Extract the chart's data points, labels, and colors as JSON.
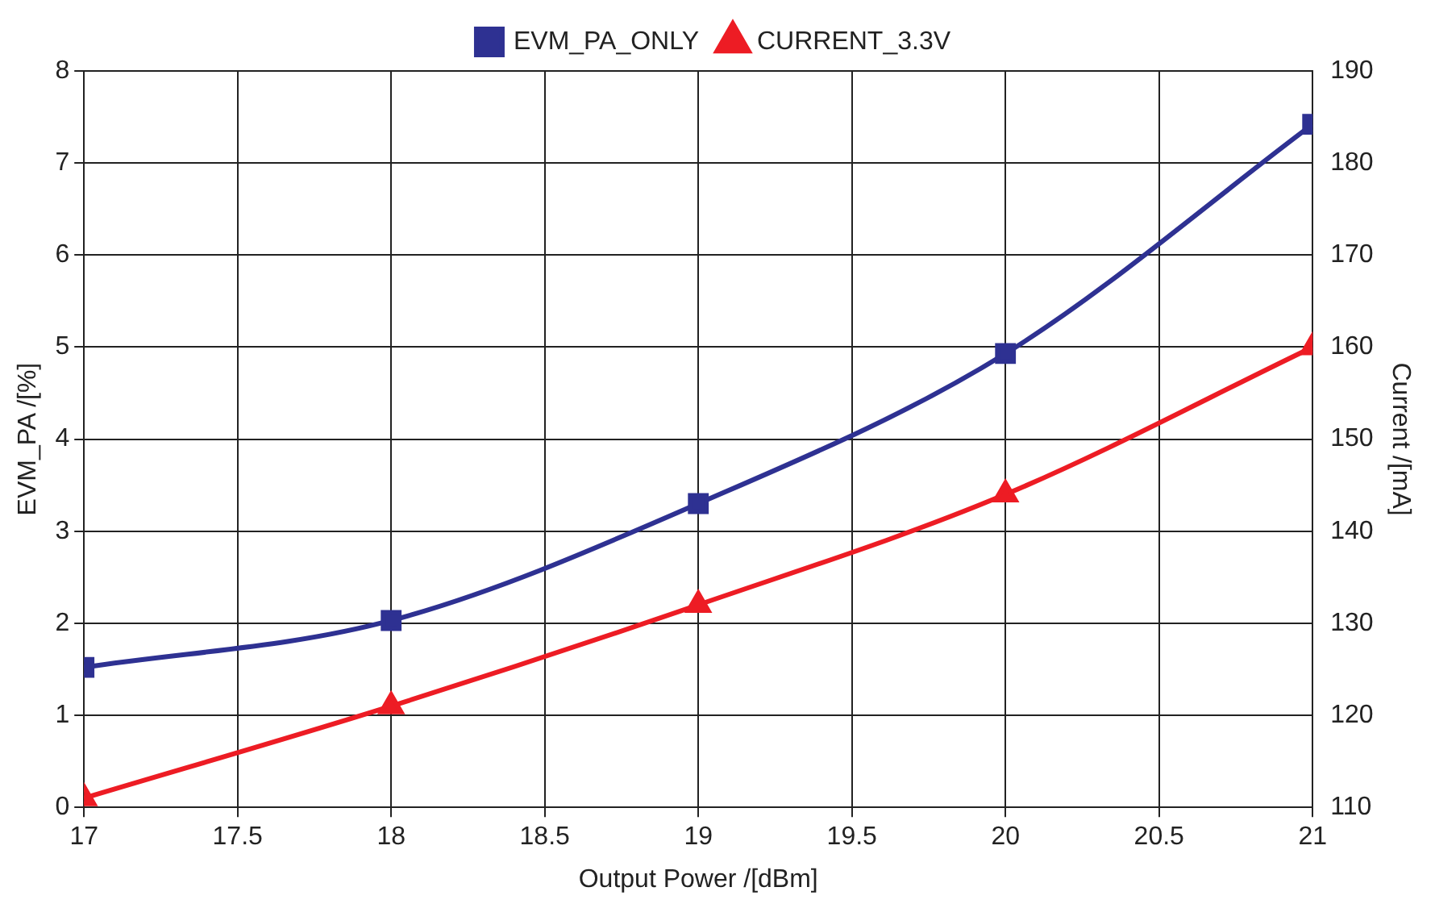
{
  "chart_data": {
    "type": "line",
    "xlabel": "Output Power /[dBm]",
    "ylabel": "EVM_PA /[%]",
    "y2label": "Current /[mA]",
    "x": [
      17,
      18,
      19,
      20,
      21
    ],
    "series": [
      {
        "name": "EVM_PA_ONLY",
        "color": "#2e3192",
        "marker": "square",
        "values": [
          1.52,
          2.03,
          3.3,
          4.93,
          7.42
        ]
      },
      {
        "name": "CURRENT_3.3V",
        "color": "#ed1c24",
        "marker": "triangle",
        "axis": "y2",
        "values": [
          111,
          121,
          132,
          144,
          160
        ]
      }
    ],
    "xlim": [
      17,
      21
    ],
    "xticks": [
      17,
      17.5,
      18,
      18.5,
      19,
      19.5,
      20,
      20.5,
      21
    ],
    "ylim": [
      0,
      8
    ],
    "yticks": [
      0,
      1,
      2,
      3,
      4,
      5,
      6,
      7,
      8
    ],
    "y2lim": [
      110,
      190
    ],
    "y2ticks": [
      110,
      120,
      130,
      140,
      150,
      160,
      170,
      180,
      190
    ],
    "grid": true,
    "legend": "top",
    "line_style": "solid"
  }
}
